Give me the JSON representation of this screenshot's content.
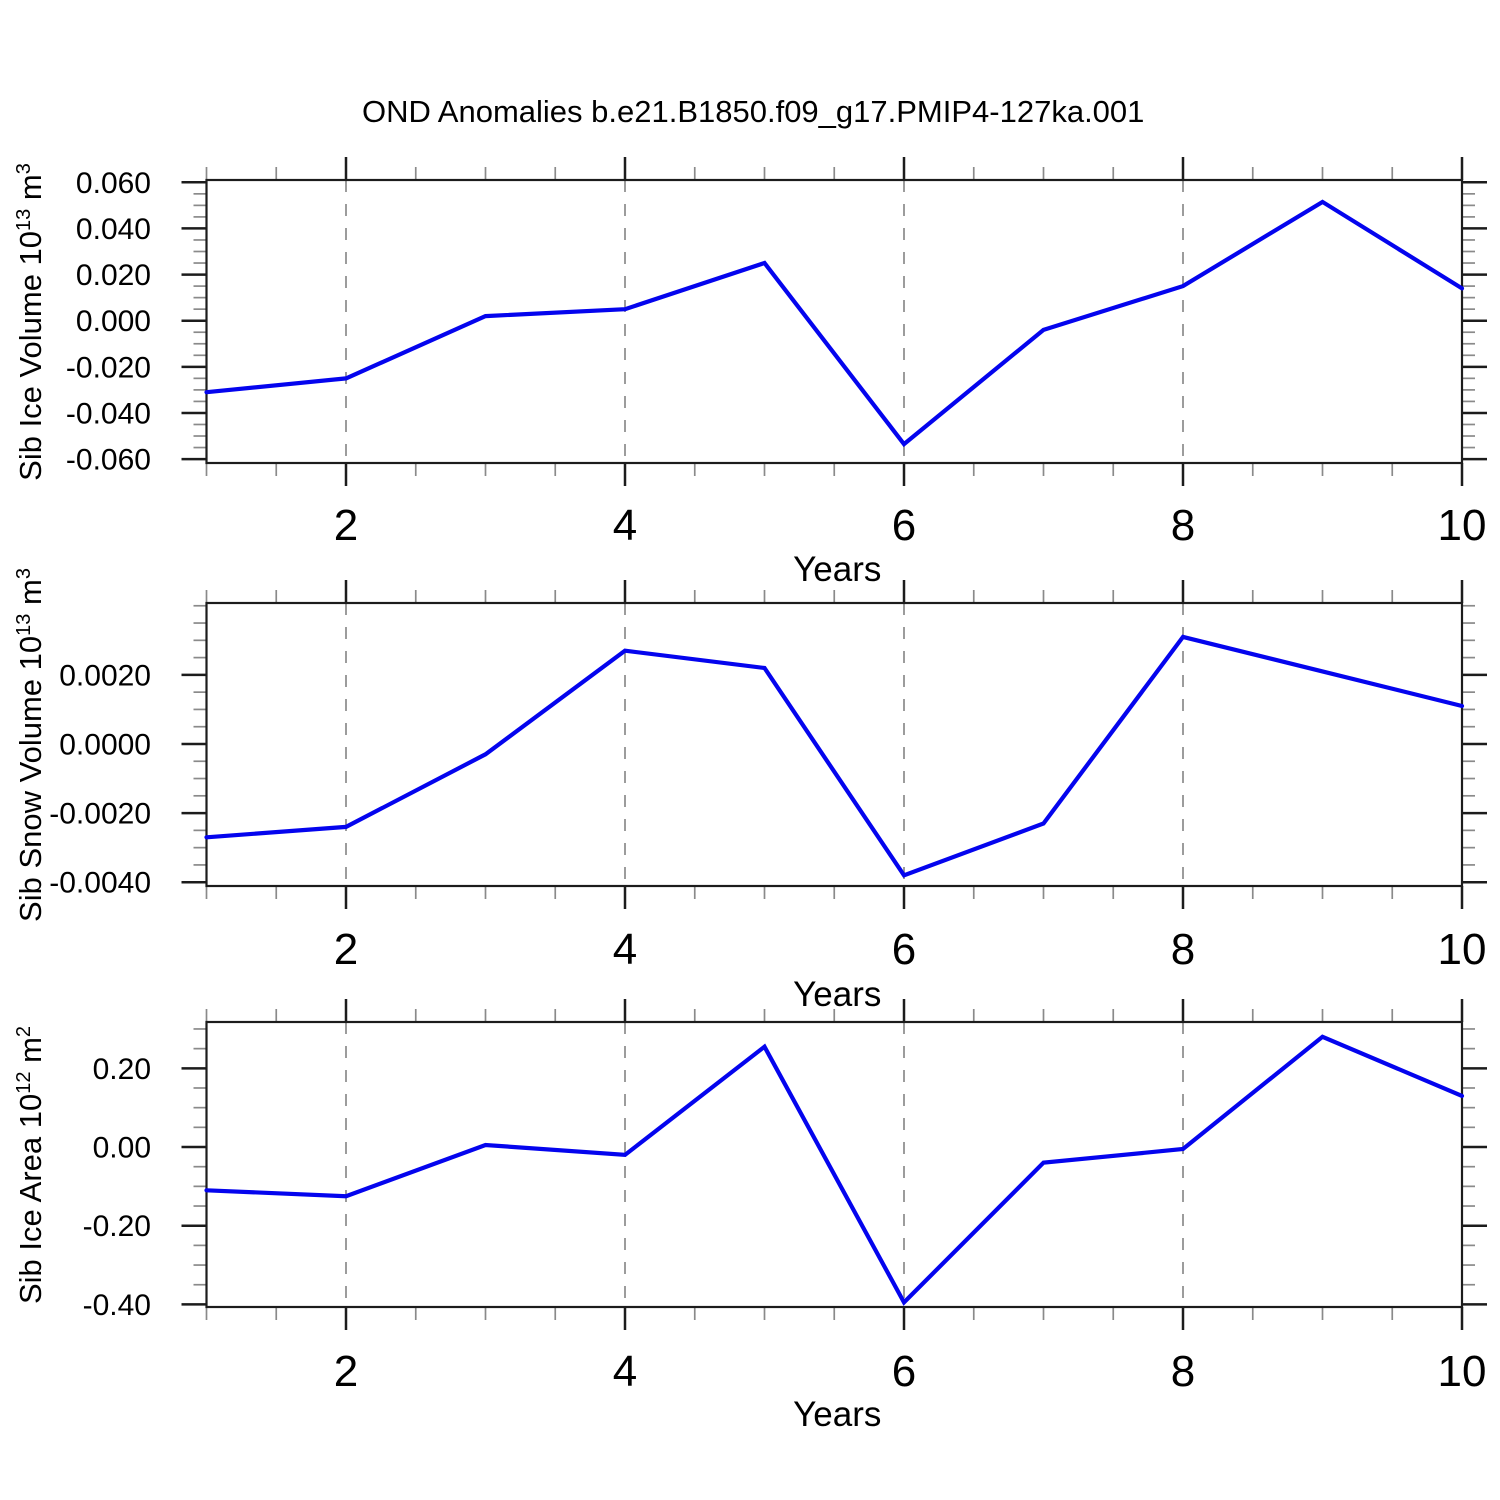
{
  "title": "OND Anomalies b.e21.B1850.f09_g17.PMIP4-127ka.001",
  "colors": {
    "line": "#0404ee",
    "frame": "#1c1c1c",
    "major_tick": "#1c1c1c",
    "minor_tick": "#8a8a8a",
    "gridline": "#9c9c9c",
    "text": "#000000",
    "background": "#ffffff"
  },
  "chart_data": [
    {
      "type": "line",
      "id": "sib-ice-volume",
      "ylabel": "Sib Ice Volume 10^13 m^3",
      "xlabel": "Years",
      "x": [
        1,
        2,
        3,
        4,
        5,
        6,
        7,
        8,
        9,
        10
      ],
      "y": [
        -0.031,
        -0.025,
        0.002,
        0.005,
        0.025,
        -0.0535,
        -0.004,
        0.015,
        0.0515,
        0.014
      ],
      "xlim": [
        1,
        10
      ],
      "ylim": [
        -0.0617,
        0.061
      ],
      "yticks": [
        0.06,
        0.04,
        0.02,
        0.0,
        -0.02,
        -0.04,
        -0.06
      ],
      "ytick_labels": [
        "0.060",
        "0.040",
        "0.020",
        "0.000",
        "-0.020",
        "-0.040",
        "-0.060"
      ],
      "yminor_step": 0.005,
      "xticks": [
        2,
        4,
        6,
        8,
        10
      ],
      "xtick_labels": [
        "2",
        "4",
        "6",
        "8",
        "10"
      ],
      "xminor_step": 0.5,
      "gridlines_x": [
        2,
        4,
        6,
        8
      ],
      "grid": "vertical-dashed",
      "legend": "none"
    },
    {
      "type": "line",
      "id": "sib-snow-volume",
      "ylabel": "Sib Snow Volume 10^13 m^3",
      "xlabel": "Years",
      "x": [
        1,
        2,
        3,
        4,
        5,
        6,
        7,
        8,
        9,
        10
      ],
      "y": [
        -0.0027,
        -0.0024,
        -0.0003,
        0.0027,
        0.0022,
        -0.0038,
        -0.0023,
        0.0031,
        0.0021,
        0.0011
      ],
      "xlim": [
        1,
        10
      ],
      "ylim": [
        -0.00411,
        0.00408
      ],
      "yticks": [
        0.002,
        0.0,
        -0.002,
        -0.004
      ],
      "ytick_labels": [
        "0.0020",
        "0.0000",
        "-0.0020",
        "-0.0040"
      ],
      "yminor_step": 0.0005,
      "xticks": [
        2,
        4,
        6,
        8,
        10
      ],
      "xtick_labels": [
        "2",
        "4",
        "6",
        "8",
        "10"
      ],
      "xminor_step": 0.5,
      "gridlines_x": [
        2,
        4,
        6,
        8
      ],
      "grid": "vertical-dashed",
      "legend": "none"
    },
    {
      "type": "line",
      "id": "sib-ice-area",
      "ylabel": "Sib Ice Area 10^12 m^2",
      "xlabel": "Years",
      "x": [
        1,
        2,
        3,
        4,
        5,
        6,
        7,
        8,
        9,
        10
      ],
      "y": [
        -0.11,
        -0.125,
        0.005,
        -0.02,
        0.255,
        -0.395,
        -0.04,
        -0.005,
        0.28,
        0.13
      ],
      "xlim": [
        1,
        10
      ],
      "ylim": [
        -0.4066,
        0.3177
      ],
      "yticks": [
        0.2,
        0.0,
        -0.2,
        -0.4
      ],
      "ytick_labels": [
        "0.20",
        "0.00",
        "-0.20",
        "-0.40"
      ],
      "yminor_step": 0.05,
      "xticks": [
        2,
        4,
        6,
        8,
        10
      ],
      "xtick_labels": [
        "2",
        "4",
        "6",
        "8",
        "10"
      ],
      "xminor_step": 0.5,
      "gridlines_x": [
        2,
        4,
        6,
        8
      ],
      "grid": "vertical-dashed",
      "legend": "none"
    }
  ]
}
